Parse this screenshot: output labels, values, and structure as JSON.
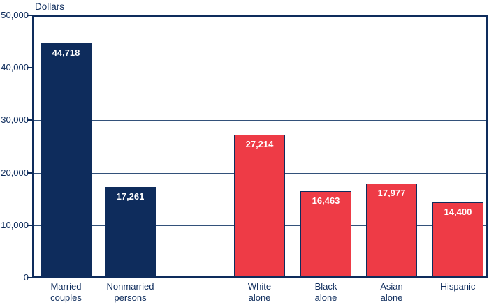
{
  "colors": {
    "navy": "#0e2c5c",
    "red": "#ee3b46",
    "gridline": "#33517a",
    "background": "#ffffff",
    "bar_value_text": "#ffffff",
    "axis_text": "#0e2c5c"
  },
  "chart_data": {
    "type": "bar",
    "ylabel": "Dollars",
    "ylim": [
      0,
      50000
    ],
    "grid": "horizontal",
    "legend": "none",
    "yticks": [
      {
        "value": 0,
        "label": "0"
      },
      {
        "value": 10000,
        "label": "10,000"
      },
      {
        "value": 20000,
        "label": "20,000"
      },
      {
        "value": 30000,
        "label": "30,000"
      },
      {
        "value": 40000,
        "label": "40,000"
      },
      {
        "value": 50000,
        "label": "50,000"
      }
    ],
    "bars": [
      {
        "category_lines": [
          "Married",
          "couples"
        ],
        "value": 44718,
        "value_label": "44,718",
        "color_key": "navy"
      },
      {
        "category_lines": [
          "Nonmarried",
          "persons"
        ],
        "value": 17261,
        "value_label": "17,261",
        "color_key": "navy"
      },
      {
        "category_lines": [
          "White",
          "alone"
        ],
        "value": 27214,
        "value_label": "27,214",
        "color_key": "red"
      },
      {
        "category_lines": [
          "Black",
          "alone"
        ],
        "value": 16463,
        "value_label": "16,463",
        "color_key": "red"
      },
      {
        "category_lines": [
          "Asian",
          "alone"
        ],
        "value": 17977,
        "value_label": "17,977",
        "color_key": "red"
      },
      {
        "category_lines": [
          "Hispanic"
        ],
        "value": 14400,
        "value_label": "14,400",
        "color_key": "red"
      }
    ],
    "group_gap_after_index": 1
  }
}
